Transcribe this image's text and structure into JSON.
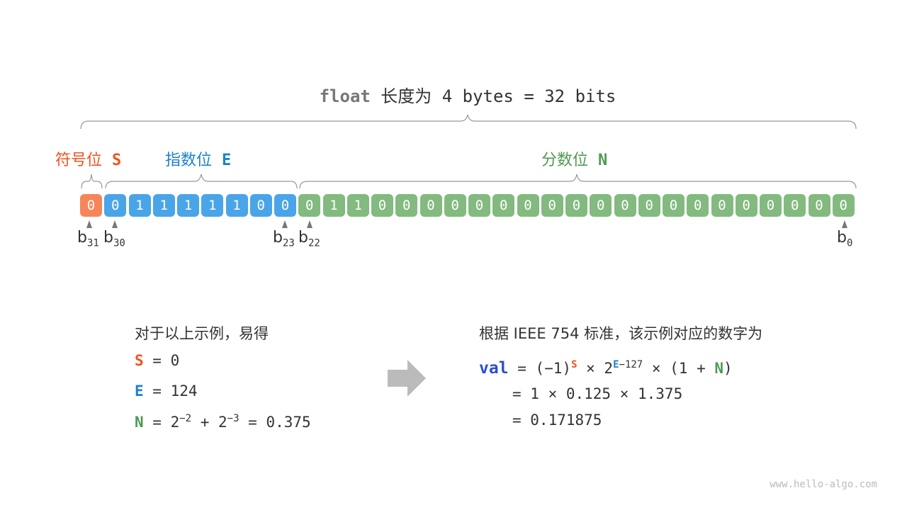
{
  "title": {
    "keyword": "float",
    "text": " 长度为 4 bytes = 32 bits"
  },
  "labels": {
    "sign": {
      "text": "符号位",
      "symbol": "S",
      "color": "#F0531E"
    },
    "exponent": {
      "text": "指数位",
      "symbol": "E",
      "color": "#1B82CF"
    },
    "fraction": {
      "text": "分数位",
      "symbol": "N",
      "color": "#4E9A52"
    }
  },
  "bits": [
    "0",
    "0",
    "1",
    "1",
    "1",
    "1",
    "1",
    "0",
    "0",
    "0",
    "1",
    "1",
    "0",
    "0",
    "0",
    "0",
    "0",
    "0",
    "0",
    "0",
    "0",
    "0",
    "0",
    "0",
    "0",
    "0",
    "0",
    "0",
    "0",
    "0",
    "0",
    "0"
  ],
  "cell_colors": {
    "sign": "#F7855A",
    "exponent": "#4AA5E8",
    "fraction": "#83BA7F"
  },
  "bit_labels": [
    {
      "b": "b",
      "sub": "31"
    },
    {
      "b": "b",
      "sub": "30"
    },
    {
      "b": "b",
      "sub": "23"
    },
    {
      "b": "b",
      "sub": "22"
    },
    {
      "b": "b",
      "sub": "0"
    }
  ],
  "left": {
    "heading": "对于以上示例，易得",
    "s_line": {
      "sym": "S",
      "rest": " = 0"
    },
    "e_line": {
      "sym": "E",
      "rest": " = 124"
    },
    "n_line": {
      "sym": "N",
      "eq": " = 2",
      "exp1": "−2",
      "plus": " + 2",
      "exp2": "−3",
      "rest": " = 0.375"
    }
  },
  "right": {
    "heading": "根据 IEEE 754 标准，该示例对应的数字为",
    "val": "val",
    "l1a": " = (−1)",
    "l1s": "S",
    "l1b": " × 2",
    "l1e": "E",
    "l1exp": "−127",
    "l1c": " × (1 + ",
    "l1n": "N",
    "l1d": ")",
    "l2": " = 1 × 0.125 × 1.375",
    "l3": " = 0.171875"
  },
  "watermark": "www.hello-algo.com"
}
